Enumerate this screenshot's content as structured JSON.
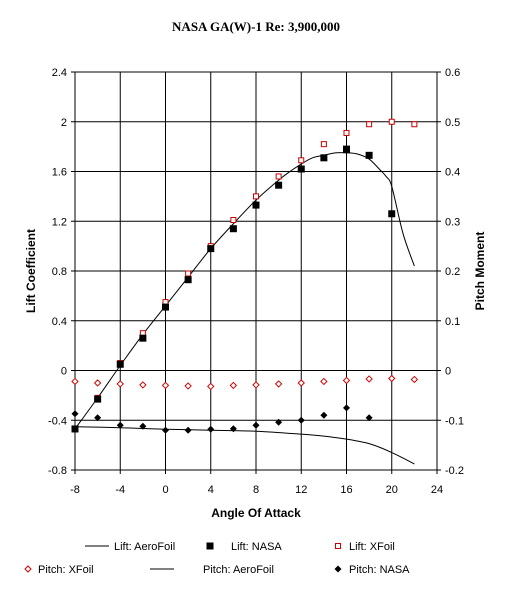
{
  "chart_data": {
    "type": "line",
    "title": "NASA GA(W)-1 Re: 3,900,000",
    "xlabel": "Angle Of Attack",
    "ylabel": "Lift Coefficient",
    "y2label": "Pitch Moment",
    "xlim": [
      -8,
      24
    ],
    "ylim": [
      -0.8,
      2.4
    ],
    "y2lim": [
      -0.2,
      0.6
    ],
    "xticks": [
      -8,
      -4,
      0,
      4,
      8,
      12,
      16,
      20,
      24
    ],
    "xtick_labels": [
      "-8",
      "-4",
      "0",
      "4",
      "8",
      "12",
      "16",
      "20",
      "24"
    ],
    "yticks": [
      -0.8,
      -0.4,
      0,
      0.4,
      0.8,
      1.2,
      1.6,
      2,
      2.4
    ],
    "ytick_labels": [
      "-0.8",
      "-0.4",
      "0",
      "0.4",
      "0.8",
      "1.2",
      "1.6",
      "2",
      "2.4"
    ],
    "y2ticks": [
      -0.2,
      -0.1,
      0,
      0.1,
      0.2,
      0.3,
      0.4,
      0.5,
      0.6
    ],
    "y2tick_labels": [
      "-0.2",
      "-0.1",
      "0",
      "0.1",
      "0.2",
      "0.3",
      "0.4",
      "0.5",
      "0.6"
    ],
    "grid": true,
    "legend_position": "bottom",
    "series": [
      {
        "name": "Lift: AeroFoil",
        "axis": "left",
        "kind": "line",
        "color": "#000000",
        "x": [
          -8,
          -6,
          -4,
          -2,
          0,
          2,
          4,
          6,
          8,
          10,
          11,
          12,
          13,
          14,
          15,
          16,
          17,
          18,
          19,
          19.5,
          20,
          21,
          22
        ],
        "y": [
          -0.47,
          -0.22,
          0.04,
          0.29,
          0.52,
          0.75,
          0.98,
          1.18,
          1.37,
          1.53,
          1.6,
          1.66,
          1.71,
          1.73,
          1.75,
          1.75,
          1.74,
          1.7,
          1.61,
          1.56,
          1.48,
          1.1,
          0.84
        ]
      },
      {
        "name": "Lift: NASA",
        "axis": "left",
        "kind": "marker",
        "marker": "filled-square",
        "color": "#000000",
        "x": [
          -8,
          -6,
          -4,
          -2,
          0,
          2,
          4,
          6,
          8,
          10,
          12,
          14,
          16,
          18,
          20
        ],
        "y": [
          -0.47,
          -0.23,
          0.05,
          0.26,
          0.51,
          0.73,
          0.98,
          1.14,
          1.33,
          1.49,
          1.62,
          1.71,
          1.78,
          1.73,
          1.26
        ]
      },
      {
        "name": "Lift: XFoil",
        "axis": "left",
        "kind": "marker",
        "marker": "open-square",
        "color": "#cc0000",
        "x": [
          -8,
          -6,
          -4,
          -2,
          0,
          2,
          4,
          6,
          8,
          10,
          12,
          14,
          16,
          18,
          20,
          22
        ],
        "y": [
          -0.47,
          -0.22,
          0.06,
          0.3,
          0.55,
          0.78,
          1.0,
          1.21,
          1.4,
          1.56,
          1.69,
          1.82,
          1.91,
          1.98,
          2.0,
          1.98
        ]
      },
      {
        "name": "Pitch: XFoil",
        "axis": "right",
        "kind": "marker",
        "marker": "open-diamond",
        "color": "#cc0000",
        "x": [
          -8,
          -6,
          -4,
          -2,
          0,
          2,
          4,
          6,
          8,
          10,
          12,
          14,
          16,
          18,
          20,
          22
        ],
        "y": [
          -0.022,
          -0.025,
          -0.027,
          -0.029,
          -0.03,
          -0.031,
          -0.032,
          -0.03,
          -0.029,
          -0.027,
          -0.025,
          -0.022,
          -0.02,
          -0.017,
          -0.016,
          -0.018
        ]
      },
      {
        "name": "Pitch: AeroFoil",
        "axis": "right",
        "kind": "line",
        "color": "#000000",
        "x": [
          -8,
          -4,
          0,
          4,
          8,
          12,
          14,
          16,
          17,
          18,
          19,
          20,
          21,
          22
        ],
        "y": [
          -0.113,
          -0.115,
          -0.118,
          -0.12,
          -0.122,
          -0.128,
          -0.132,
          -0.138,
          -0.142,
          -0.147,
          -0.155,
          -0.165,
          -0.176,
          -0.188
        ]
      },
      {
        "name": "Pitch: NASA",
        "axis": "right",
        "kind": "marker",
        "marker": "filled-diamond",
        "color": "#000000",
        "x": [
          -8,
          -6,
          -4,
          -2,
          0,
          2,
          4,
          6,
          8,
          10,
          12,
          14,
          16,
          18
        ],
        "y": [
          -0.087,
          -0.095,
          -0.11,
          -0.112,
          -0.12,
          -0.12,
          -0.118,
          -0.117,
          -0.11,
          -0.104,
          -0.1,
          -0.09,
          -0.075,
          -0.095
        ]
      }
    ]
  }
}
